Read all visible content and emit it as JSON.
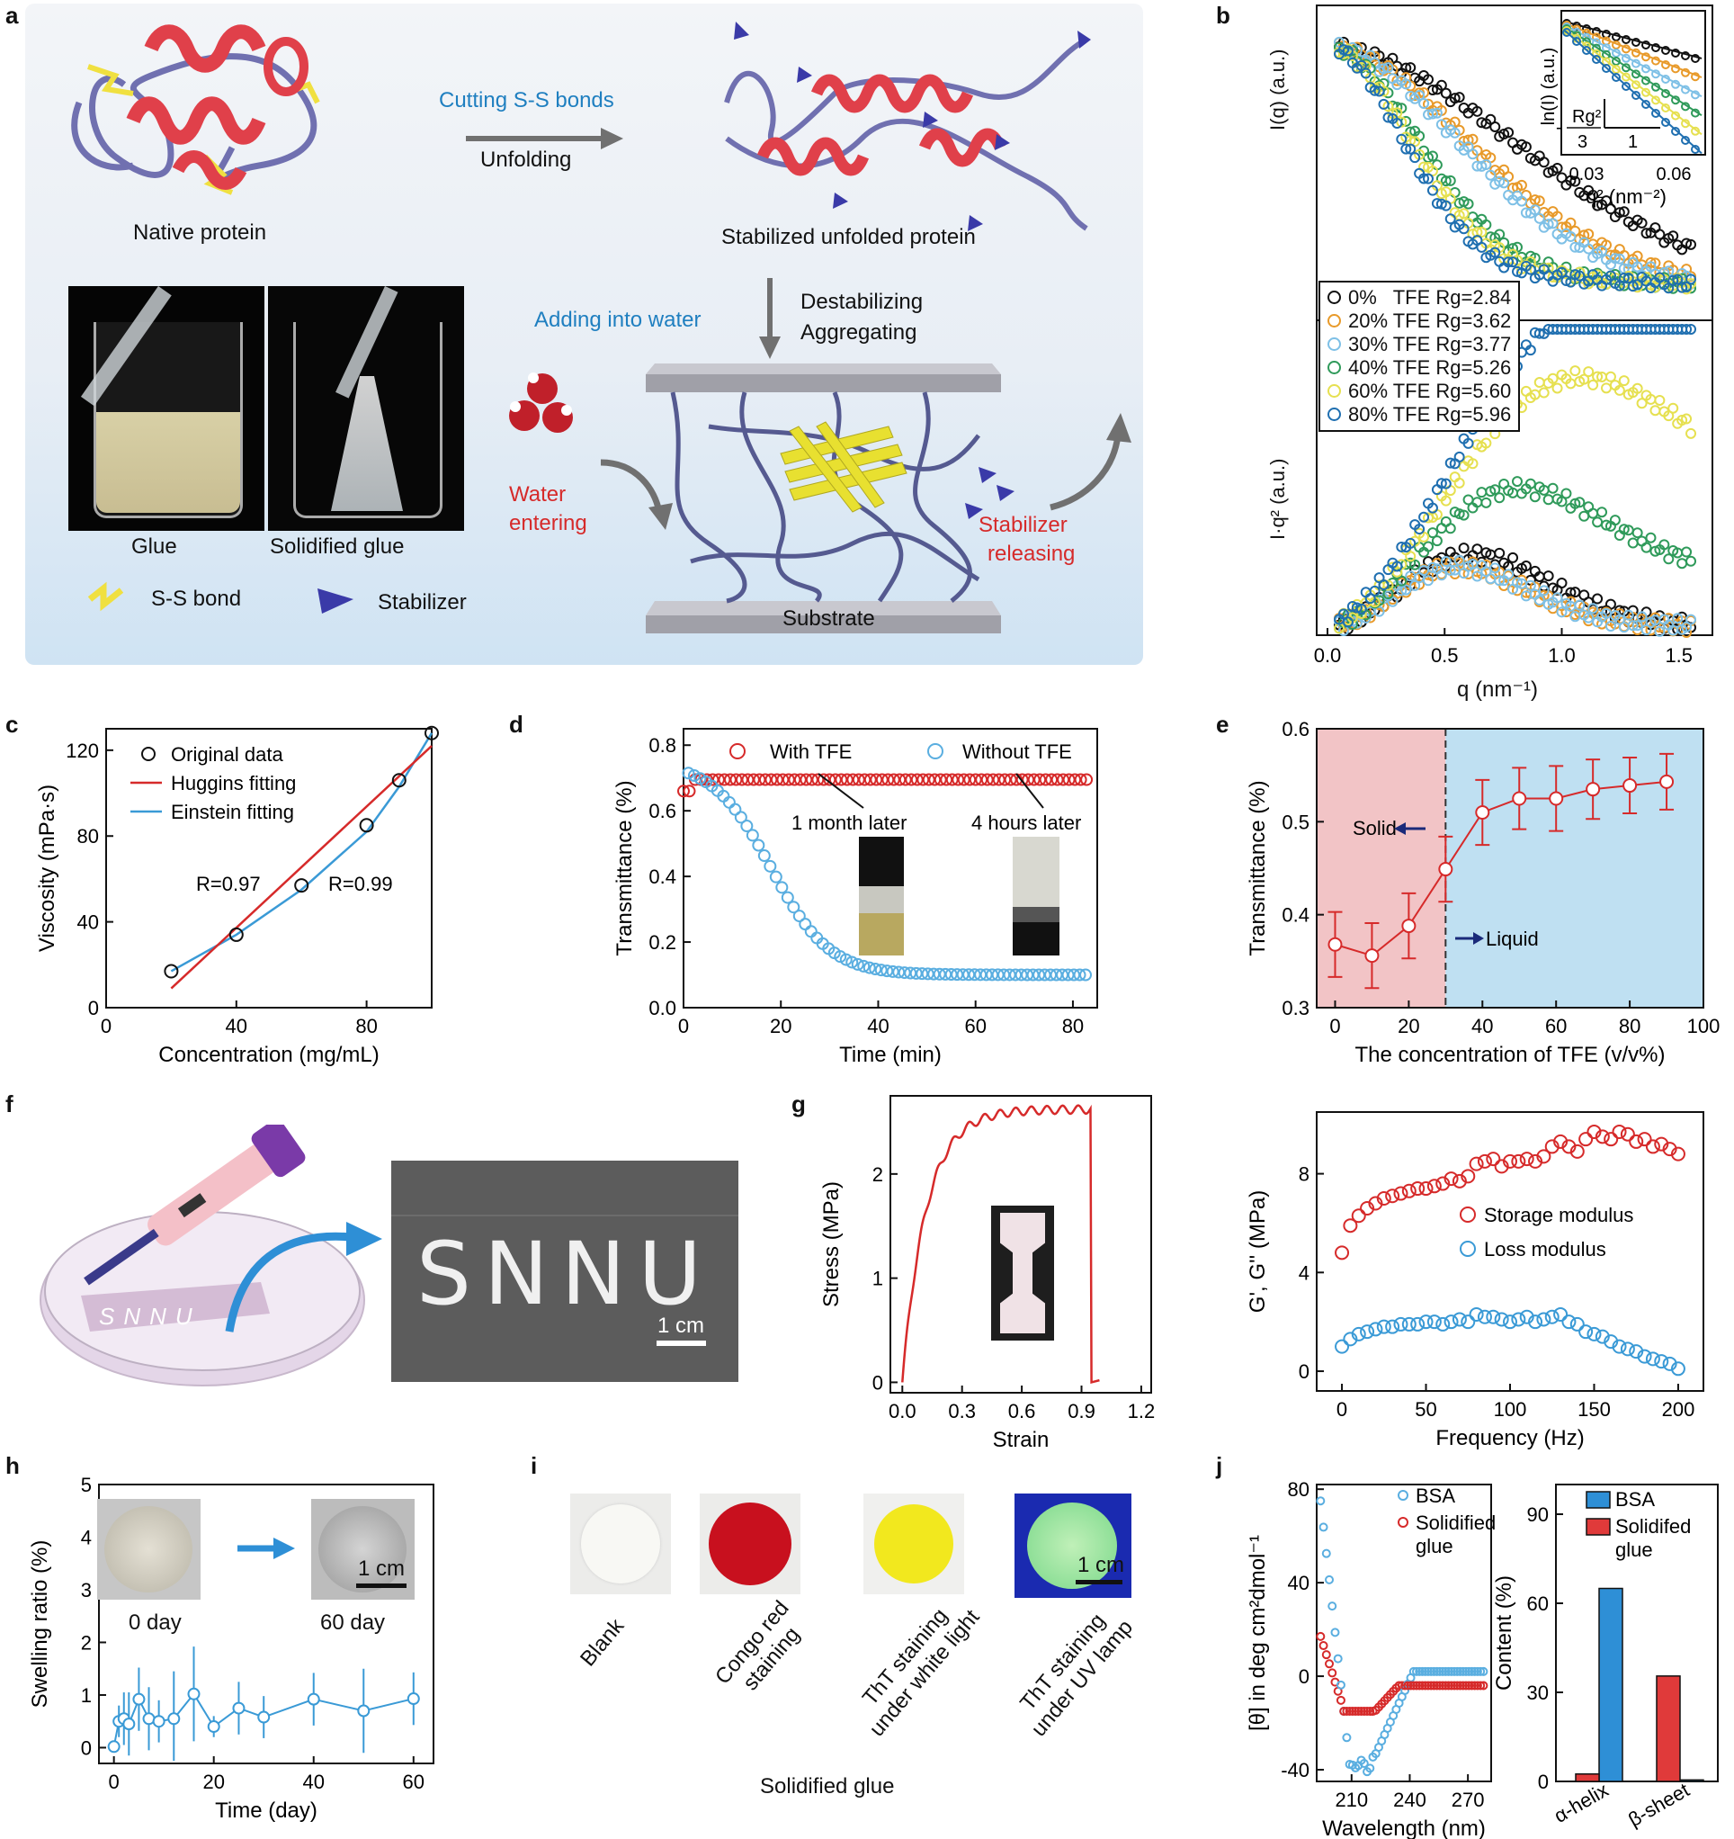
{
  "panel_labels": {
    "a": "a",
    "b": "b",
    "c": "c",
    "d": "d",
    "e": "e",
    "f": "f",
    "g": "g",
    "h": "h",
    "i": "i",
    "j": "j"
  },
  "panel_a": {
    "native_protein": "Native protein",
    "cutting": "Cutting S-S bonds",
    "unfolding": "Unfolding",
    "stabilized": "Stabilized unfolded protein",
    "adding_water": "Adding into water",
    "destabilizing": "Destabilizing",
    "aggregating": "Aggregating",
    "water_entering_1": "Water",
    "water_entering_2": "entering",
    "stabilizer_releasing_1": "Stabilizer",
    "stabilizer_releasing_2": "releasing",
    "substrate": "Substrate",
    "glue": "Glue",
    "solidified_glue": "Solidified glue",
    "ss_bond": "S-S bond",
    "stabilizer": "Stabilizer",
    "colors": {
      "helix": "#e0404a",
      "coil": "#6f6fb0",
      "sheet": "#e8e030",
      "ss": "#f0e040",
      "stabilizer": "#3a3aa8",
      "text_blue": "#1f7fc0",
      "text_red": "#d62a2a"
    }
  },
  "panel_b": {
    "top_ylabel": "I(q) (a.u.)",
    "bottom_ylabel": "I·q² (a.u.)",
    "xlabel": "q (nm⁻¹)",
    "xticks": [
      "0.0",
      "0.5",
      "1.0",
      "1.5"
    ],
    "inset_ylabel": "ln(I) (a.u.)",
    "inset_xlabel": "q² (nm⁻²)",
    "inset_xticks": [
      "0.03",
      "0.06"
    ],
    "inset_slope_num": "Rg²",
    "inset_slope_den": "3",
    "inset_run": "1",
    "legend": [
      {
        "label": "0%   TFE Rg=2.84",
        "color": "#111111"
      },
      {
        "label": "20% TFE Rg=3.62",
        "color": "#e89a2a"
      },
      {
        "label": "30% TFE Rg=3.77",
        "color": "#7ec0e6"
      },
      {
        "label": "40% TFE Rg=5.26",
        "color": "#2f9a5a"
      },
      {
        "label": "60% TFE Rg=5.60",
        "color": "#e6e050"
      },
      {
        "label": "80% TFE Rg=5.96",
        "color": "#1f6fb0"
      }
    ]
  },
  "chart_data": [
    {
      "id": "c",
      "type": "line",
      "xlabel": "Concentration (mg/mL)",
      "ylabel": "Viscosity (mPa·s)",
      "xlim": [
        0,
        100
      ],
      "ylim": [
        0,
        130
      ],
      "xticks": [
        "0",
        "40",
        "80"
      ],
      "yticks": [
        "0",
        "40",
        "80",
        "120"
      ],
      "series": [
        {
          "name": "Original data",
          "x": [
            20,
            40,
            60,
            80,
            90,
            100
          ],
          "y": [
            17,
            34,
            57,
            85,
            106,
            128
          ]
        },
        {
          "name": "Huggins fitting",
          "x": [
            20,
            100
          ],
          "y": [
            9,
            122
          ]
        },
        {
          "name": "Einstein fitting",
          "x": [
            20,
            40,
            60,
            80,
            90,
            100
          ],
          "y": [
            17,
            34,
            55,
            82,
            103,
            128
          ]
        }
      ],
      "annotations": [
        "R=0.97",
        "R=0.99"
      ]
    },
    {
      "id": "d",
      "type": "scatter",
      "xlabel": "Time (min)",
      "ylabel": "Transmittance (%)",
      "xlim": [
        0,
        85
      ],
      "ylim": [
        0,
        0.85
      ],
      "xticks": [
        "0",
        "20",
        "40",
        "60",
        "80"
      ],
      "yticks": [
        "0.0",
        "0.2",
        "0.4",
        "0.6",
        "0.8"
      ],
      "series": [
        {
          "name": "With TFE",
          "plateau": 0.7
        },
        {
          "name": "Without TFE",
          "start": 0.72,
          "end": 0.1
        }
      ],
      "annotations": [
        "1 month later",
        "4 hours later"
      ]
    },
    {
      "id": "e",
      "type": "line",
      "xlabel": "The concentration of TFE (v/v%)",
      "ylabel": "Transmittance (%)",
      "xlim": [
        -5,
        100
      ],
      "ylim": [
        0.3,
        0.6
      ],
      "xticks": [
        "0",
        "20",
        "40",
        "60",
        "80",
        "100"
      ],
      "yticks": [
        "0.3",
        "0.4",
        "0.5",
        "0.6"
      ],
      "x": [
        0,
        10,
        20,
        30,
        40,
        50,
        60,
        70,
        80,
        90
      ],
      "y": [
        0.368,
        0.356,
        0.388,
        0.449,
        0.51,
        0.525,
        0.525,
        0.535,
        0.539,
        0.543
      ],
      "err": [
        0.035,
        0.035,
        0.035,
        0.035,
        0.035,
        0.033,
        0.035,
        0.032,
        0.03,
        0.03
      ],
      "annotations": [
        "Solid",
        "Liquid"
      ]
    },
    {
      "id": "g",
      "type": "line",
      "xlabel": "Strain",
      "ylabel": "Stress (MPa)",
      "xlim": [
        -0.06,
        1.25
      ],
      "ylim": [
        -0.1,
        2.75
      ],
      "xticks": [
        "0.0",
        "0.3",
        "0.6",
        "0.9",
        "1.2"
      ],
      "yticks": [
        "0",
        "1",
        "2"
      ],
      "peak_stress": 2.62,
      "break_strain": 0.95
    },
    {
      "id": "g2",
      "type": "scatter",
      "xlabel": "Frequency (Hz)",
      "ylabel": "G', G'' (MPa)",
      "xlim": [
        -15,
        215
      ],
      "ylim": [
        -0.8,
        10.5
      ],
      "xticks": [
        "0",
        "50",
        "100",
        "150",
        "200"
      ],
      "yticks": [
        "0",
        "4",
        "8"
      ],
      "series": [
        {
          "name": "Storage modulus",
          "x": [
            0,
            5,
            10,
            15,
            20,
            25,
            30,
            35,
            40,
            45,
            50,
            55,
            60,
            65,
            70,
            75,
            80,
            85,
            90,
            95,
            100,
            105,
            110,
            115,
            120,
            125,
            130,
            135,
            140,
            145,
            150,
            155,
            160,
            165,
            170,
            175,
            180,
            185,
            190,
            195,
            200
          ],
          "y": [
            4.8,
            5.9,
            6.3,
            6.6,
            6.8,
            7.0,
            7.1,
            7.2,
            7.3,
            7.4,
            7.4,
            7.5,
            7.6,
            7.8,
            7.7,
            7.9,
            8.4,
            8.5,
            8.6,
            8.3,
            8.5,
            8.5,
            8.6,
            8.5,
            8.7,
            9.1,
            9.3,
            9.1,
            8.9,
            9.4,
            9.7,
            9.5,
            9.4,
            9.7,
            9.6,
            9.3,
            9.4,
            9.1,
            9.2,
            9.0,
            8.8
          ]
        },
        {
          "name": "Loss modulus",
          "x": [
            0,
            5,
            10,
            15,
            20,
            25,
            30,
            35,
            40,
            45,
            50,
            55,
            60,
            65,
            70,
            75,
            80,
            85,
            90,
            95,
            100,
            105,
            110,
            115,
            120,
            125,
            130,
            135,
            140,
            145,
            150,
            155,
            160,
            165,
            170,
            175,
            180,
            185,
            190,
            195,
            200
          ],
          "y": [
            1.0,
            1.3,
            1.5,
            1.6,
            1.7,
            1.8,
            1.8,
            1.9,
            1.9,
            1.9,
            2.0,
            2.0,
            1.9,
            2.0,
            2.1,
            2.0,
            2.3,
            2.2,
            2.2,
            2.1,
            2.0,
            2.1,
            2.2,
            2.0,
            2.1,
            2.2,
            2.3,
            2.0,
            1.9,
            1.6,
            1.5,
            1.4,
            1.2,
            1.0,
            0.9,
            0.8,
            0.6,
            0.5,
            0.4,
            0.3,
            0.1
          ]
        }
      ]
    },
    {
      "id": "h",
      "type": "line",
      "xlabel": "Time (day)",
      "ylabel": "Swelling ratio (%)",
      "xlim": [
        -3,
        64
      ],
      "ylim": [
        -0.3,
        5
      ],
      "xticks": [
        "0",
        "20",
        "40",
        "60"
      ],
      "yticks": [
        "0",
        "1",
        "2",
        "3",
        "4",
        "5"
      ],
      "x": [
        0,
        1,
        2,
        3,
        5,
        7,
        9,
        12,
        16,
        20,
        25,
        30,
        40,
        50,
        60
      ],
      "y": [
        0.02,
        0.5,
        0.55,
        0.45,
        0.92,
        0.55,
        0.5,
        0.55,
        1.02,
        0.4,
        0.75,
        0.58,
        0.92,
        0.7,
        0.93
      ],
      "err": [
        0.05,
        0.3,
        0.5,
        0.6,
        0.6,
        0.6,
        0.4,
        0.9,
        0.9,
        0.2,
        0.5,
        0.4,
        0.5,
        0.8,
        0.5
      ],
      "annotations": [
        "0 day",
        "60 day",
        "1 cm"
      ]
    },
    {
      "id": "j1",
      "type": "scatter",
      "xlabel": "Wavelength (nm)",
      "ylabel": "[θ] in deg cm²dmol⁻¹",
      "xlim": [
        192,
        282
      ],
      "ylim": [
        -45,
        82
      ],
      "xticks": [
        "210",
        "240",
        "270"
      ],
      "yticks": [
        "-40",
        "0",
        "40",
        "80"
      ],
      "series": [
        {
          "name": "BSA"
        },
        {
          "name": "Solidified glue"
        }
      ]
    },
    {
      "id": "j2",
      "type": "bar",
      "categories": [
        "α-helix",
        "β-sheet"
      ],
      "xlabel": "",
      "ylabel": "Content (%)",
      "ylim": [
        0,
        100
      ],
      "yticks": [
        "0",
        "30",
        "60",
        "90"
      ],
      "series": [
        {
          "name": "BSA",
          "values": [
            65,
            0.5
          ],
          "color": "#2e8fd6"
        },
        {
          "name": "Solidifed glue",
          "values": [
            2.5,
            35.5
          ],
          "color": "#e03a3a"
        }
      ]
    }
  ],
  "panel_c_legend": [
    "Original data",
    "Huggins fitting",
    "Einstein fitting"
  ],
  "panel_d_legend": [
    "With TFE",
    "Without TFE"
  ],
  "panel_e_labels": {
    "solid": "Solid",
    "liquid": "Liquid"
  },
  "panel_f": {
    "scale": "1 cm",
    "letters": "SNNU"
  },
  "panel_g2_legend": [
    "Storage modulus",
    "Loss modulus"
  ],
  "panel_i": {
    "captions": [
      "Blank",
      "Congo red staining",
      "ThT staining under white light",
      "ThT staining under UV lamp"
    ],
    "caption_lines": [
      [
        "Blank"
      ],
      [
        "Congo red",
        "staining"
      ],
      [
        "ThT staining",
        "under white light"
      ],
      [
        "ThT staining",
        "under UV lamp"
      ]
    ],
    "scale": "1 cm",
    "title": "Solidified glue",
    "colors": [
      "#f2f0ea",
      "#c8101e",
      "#f0e020",
      "#a8e8a0"
    ]
  },
  "panel_j_legend1": {
    "bsa": "BSA",
    "glue_1": "Solidified",
    "glue_2": "glue"
  },
  "panel_j_legend2": {
    "bsa": "BSA",
    "glue_1": "Solidifed",
    "glue_2": "glue"
  }
}
